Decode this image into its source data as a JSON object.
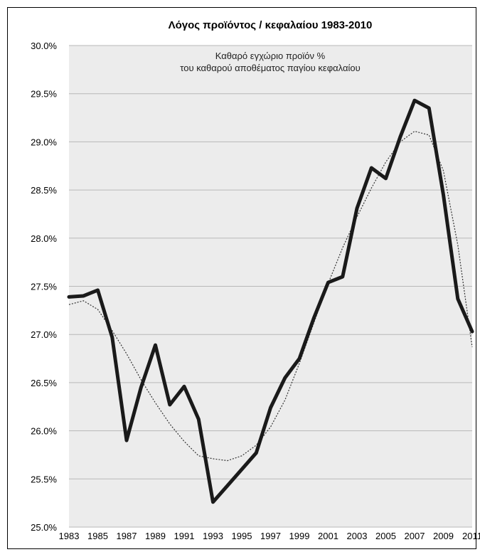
{
  "chart_data": {
    "type": "line",
    "title": "Λόγος προϊόντος / κεφαλαίου 1983-2010",
    "subtitle_lines": [
      "Καθαρό εγχώριο προϊόν %",
      "του καθαρού αποθέματος παγίου κεφαλαίου"
    ],
    "xlabel": "",
    "ylabel": "",
    "ylim": [
      25.0,
      30.0
    ],
    "y_ticks": [
      "25.0%",
      "25.5%",
      "26.0%",
      "26.5%",
      "27.0%",
      "27.5%",
      "28.0%",
      "28.5%",
      "29.0%",
      "29.5%",
      "30.0%"
    ],
    "x_ticks": [
      "1983",
      "1985",
      "1987",
      "1989",
      "1991",
      "1993",
      "1995",
      "1997",
      "1999",
      "2001",
      "2003",
      "2005",
      "2007",
      "2009",
      "2011"
    ],
    "grid": true,
    "x": [
      1983,
      1984,
      1985,
      1986,
      1987,
      1988,
      1989,
      1990,
      1991,
      1992,
      1993,
      1994,
      1995,
      1996,
      1997,
      1998,
      1999,
      2000,
      2001,
      2002,
      2003,
      2004,
      2005,
      2006,
      2007,
      2008,
      2009,
      2010,
      2011
    ],
    "series": [
      {
        "style": "solid-thick",
        "color": "#1a1a1a",
        "values": [
          27.39,
          27.4,
          27.46,
          26.97,
          25.9,
          26.45,
          26.89,
          26.27,
          26.46,
          26.12,
          25.26,
          25.43,
          25.6,
          25.77,
          26.24,
          26.55,
          26.75,
          27.17,
          27.54,
          27.6,
          28.31,
          28.73,
          28.62,
          29.05,
          29.43,
          29.35,
          28.45,
          27.37,
          27.03
        ]
      },
      {
        "style": "dotted-trend",
        "color": "#333333",
        "values": [
          27.31,
          27.35,
          27.26,
          27.04,
          26.8,
          26.53,
          26.29,
          26.07,
          25.89,
          25.74,
          25.71,
          25.69,
          25.74,
          25.85,
          26.04,
          26.32,
          26.7,
          27.12,
          27.53,
          27.9,
          28.22,
          28.52,
          28.79,
          29.0,
          29.11,
          29.07,
          28.7,
          27.93,
          26.87
        ]
      }
    ]
  }
}
